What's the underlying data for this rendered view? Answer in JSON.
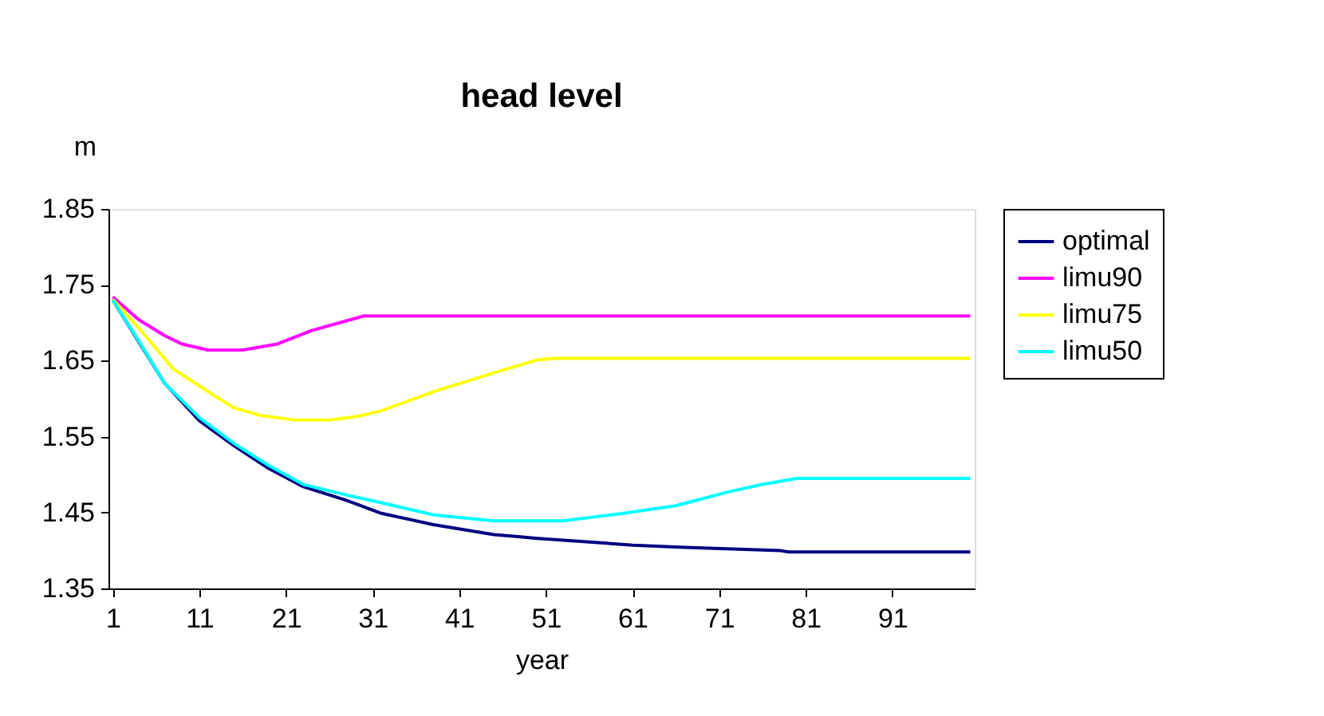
{
  "chart_data": {
    "type": "line",
    "title": "head level",
    "xlabel": "year",
    "ylabel": "m",
    "xlim": [
      0.5,
      100.5
    ],
    "xticks": [
      1,
      11,
      21,
      31,
      41,
      51,
      61,
      71,
      81,
      91
    ],
    "ylim": [
      1.35,
      1.85
    ],
    "yticks": [
      1.35,
      1.45,
      1.55,
      1.65,
      1.75,
      1.85
    ],
    "grid": false,
    "legend": "right",
    "series": [
      {
        "name": "optimal",
        "color": "#000080",
        "x": [
          1,
          4,
          7,
          11,
          15,
          19,
          23,
          28,
          32,
          38,
          45,
          48,
          50,
          55,
          61,
          67,
          78,
          79,
          100
        ],
        "values": [
          1.73,
          1.675,
          1.62,
          1.571,
          1.538,
          1.508,
          1.484,
          1.466,
          1.449,
          1.434,
          1.421,
          1.418,
          1.416,
          1.412,
          1.407,
          1.404,
          1.4,
          1.398,
          1.398
        ]
      },
      {
        "name": "limu90",
        "color": "#ff00ff",
        "x": [
          1,
          4,
          7,
          9,
          12,
          16,
          20,
          24,
          30,
          100
        ],
        "values": [
          1.734,
          1.704,
          1.683,
          1.672,
          1.664,
          1.664,
          1.672,
          1.69,
          1.709,
          1.709
        ]
      },
      {
        "name": "limu75",
        "color": "#ffff00",
        "x": [
          1,
          4,
          8,
          13,
          15,
          18,
          22,
          26,
          29,
          32,
          38,
          45,
          50,
          52,
          100
        ],
        "values": [
          1.731,
          1.693,
          1.639,
          1.602,
          1.588,
          1.578,
          1.572,
          1.572,
          1.576,
          1.584,
          1.609,
          1.634,
          1.651,
          1.653,
          1.653
        ]
      },
      {
        "name": "limu50",
        "color": "#00ffff",
        "x": [
          1,
          4,
          7,
          11,
          15,
          19,
          23,
          28,
          32,
          38,
          45,
          50,
          53,
          60,
          66,
          72,
          76,
          80,
          100
        ],
        "values": [
          1.73,
          1.676,
          1.62,
          1.575,
          1.541,
          1.512,
          1.487,
          1.473,
          1.463,
          1.447,
          1.439,
          1.439,
          1.439,
          1.449,
          1.459,
          1.477,
          1.487,
          1.495,
          1.495
        ]
      }
    ]
  }
}
